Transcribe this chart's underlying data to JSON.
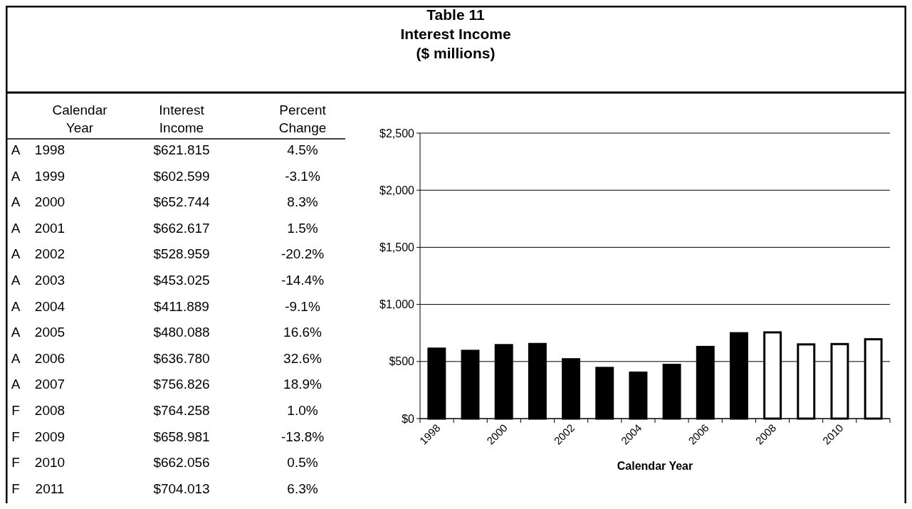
{
  "chart_data": [
    {
      "type": "heatmap",
      "ylabel": "Calendar Year",
      "categories": [
        "Interest Income",
        "Percent Change"
      ],
      "y_categories": [
        "1998",
        "1999",
        "2000",
        "2001",
        "2002",
        "2003",
        "2004",
        "2005",
        "2006",
        "2007",
        "2008",
        "2009",
        "2010",
        "2011"
      ],
      "y2_categories": [
        "A",
        "A",
        "A",
        "A",
        "A",
        "A",
        "A",
        "A",
        "A",
        "A",
        "F",
        "F",
        "F",
        "F"
      ],
      "cells": [
        [
          null,
          null
        ],
        [
          null,
          null
        ],
        [
          null,
          null
        ],
        [
          null,
          null
        ],
        [
          null,
          null
        ],
        [
          null,
          null
        ],
        [
          null,
          null
        ],
        [
          null,
          null
        ],
        [
          null,
          null
        ],
        [
          null,
          null
        ],
        [
          null,
          null
        ],
        [
          null,
          null
        ],
        [
          null,
          null
        ],
        [
          null,
          null
        ]
      ],
      "cell_labels": [
        [
          "$621.815",
          "4.5%"
        ],
        [
          "$602.599",
          "-3.1%"
        ],
        [
          "$652.744",
          "8.3%"
        ],
        [
          "$662.617",
          "1.5%"
        ],
        [
          "$528.959",
          "-20.2%"
        ],
        [
          "$453.025",
          "-14.4%"
        ],
        [
          "$411.889",
          "-9.1%"
        ],
        [
          "$480.088",
          "16.6%"
        ],
        [
          "$636.780",
          "32.6%"
        ],
        [
          "$756.826",
          "18.9%"
        ],
        [
          "$764.258",
          "1.0%"
        ],
        [
          "$658.981",
          "-13.8%"
        ],
        [
          "$662.056",
          "0.5%"
        ],
        [
          "$704.013",
          "6.3%"
        ]
      ]
    },
    {
      "type": "bar",
      "title": "Table 11\nInterest Income\n($ millions)",
      "xlabel": "Calendar Year",
      "categories": [
        "1998",
        null,
        "2000",
        null,
        "2002",
        null,
        "2004",
        null,
        "2006",
        null,
        "2008",
        null,
        "2010",
        null
      ],
      "values": [
        621.815,
        602.599,
        652.744,
        662.617,
        528.959,
        453.025,
        411.889,
        480.088,
        636.78,
        756.826,
        764.258,
        658.981,
        662.056,
        704.013
      ],
      "colors": [
        "#000000",
        "#000000",
        "#000000",
        "#000000",
        "#000000",
        "#000000",
        "#000000",
        "#000000",
        "#000000",
        "#000000",
        "#ffffff",
        "#ffffff",
        "#ffffff",
        "#ffffff"
      ],
      "ylim": [
        0,
        2500
      ],
      "yticks": [
        {
          "value": 0,
          "label": "$0"
        },
        {
          "value": 500,
          "label": "$500"
        },
        {
          "value": 1000,
          "label": "$1,000"
        },
        {
          "value": 1500,
          "label": "$1,500"
        },
        {
          "value": 2000,
          "label": "$2,000"
        },
        {
          "value": 2500,
          "label": "$2,500"
        }
      ],
      "grid": "y"
    }
  ]
}
